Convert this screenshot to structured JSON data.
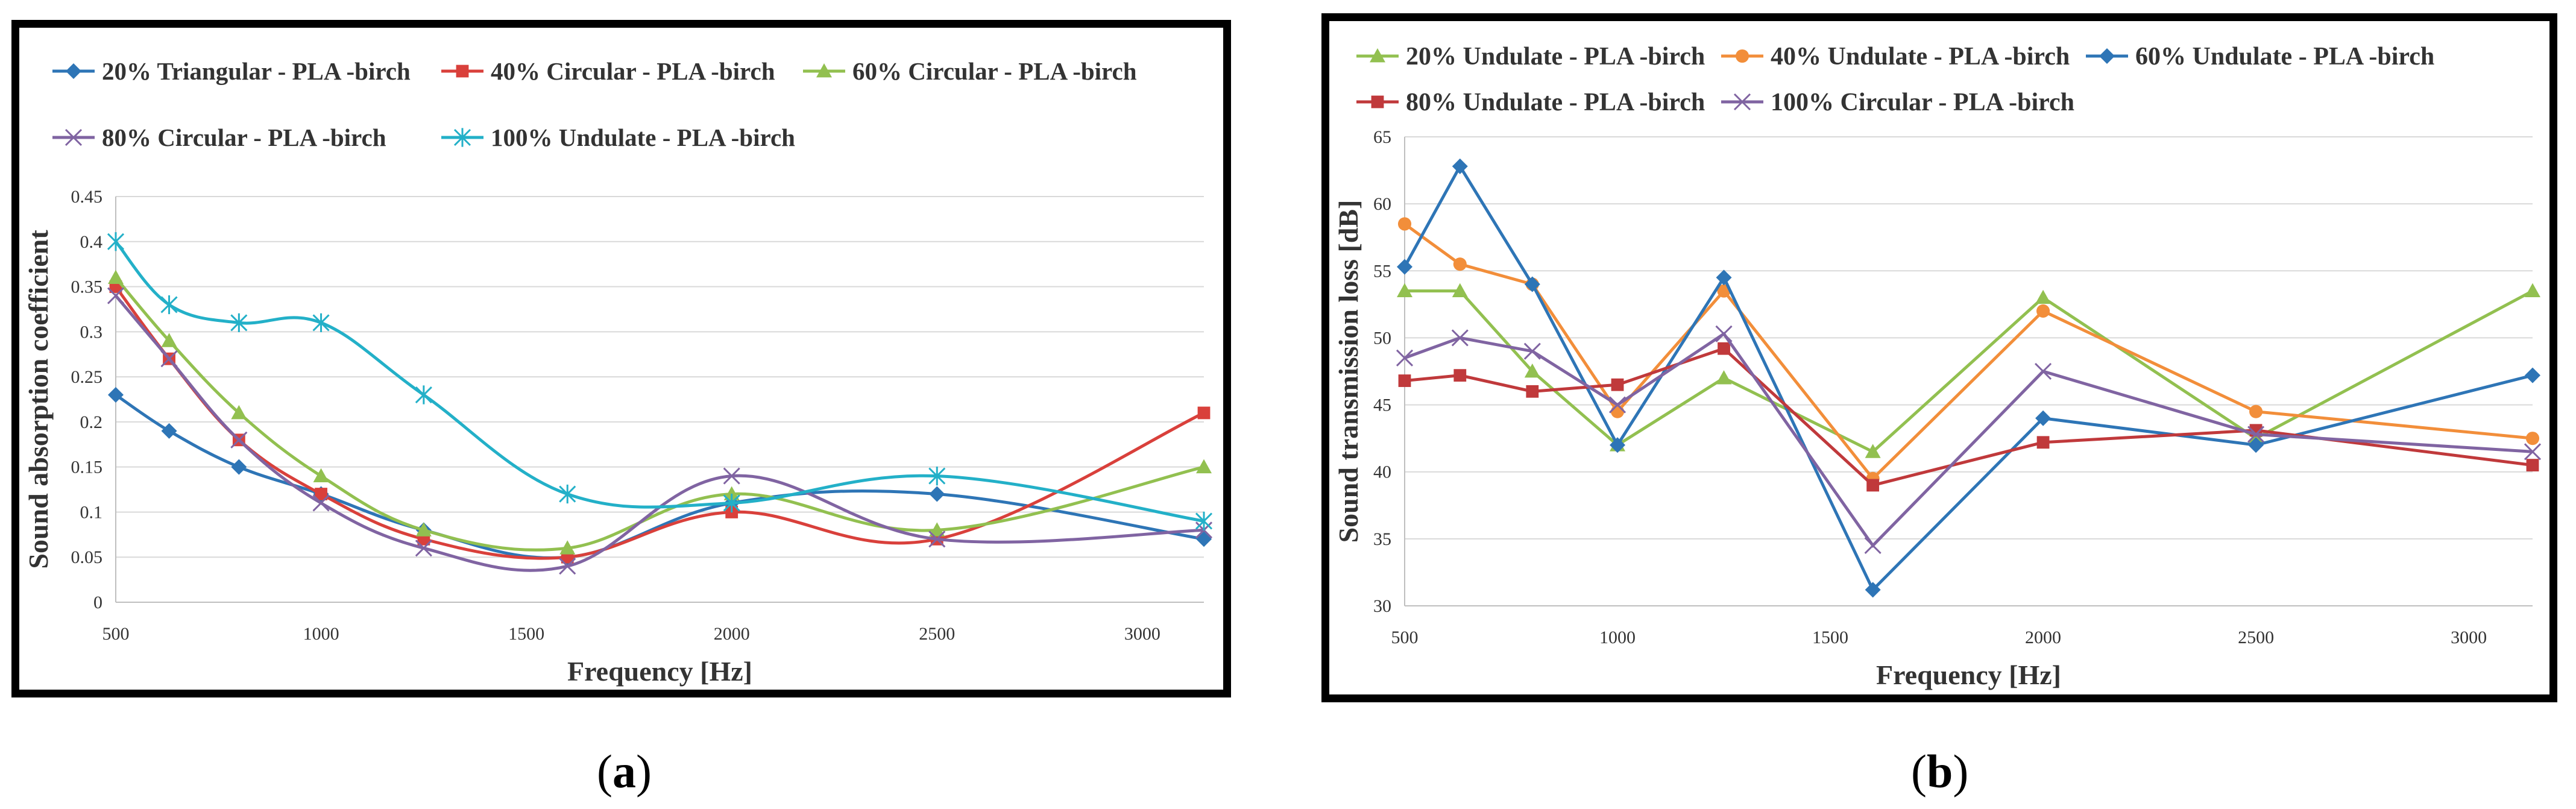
{
  "chart_data": [
    {
      "id": "a",
      "type": "line",
      "smooth": true,
      "xlabel": "Frequency [Hz]",
      "ylabel": "Sound absorption coefficient",
      "xlim": [
        500,
        3150
      ],
      "xticks": [
        500,
        1000,
        1500,
        2000,
        2500,
        3000
      ],
      "ylim": [
        0,
        0.45
      ],
      "yticks": [
        "0",
        "0.05",
        "0.1",
        "0.15",
        "0.2",
        "0.25",
        "0.3",
        "0.35",
        "0.4",
        "0.45"
      ],
      "grid": true,
      "legend_position": "top",
      "x": [
        500,
        630,
        800,
        1000,
        1250,
        1600,
        2000,
        2500,
        3150
      ],
      "series": [
        {
          "name": "20% Triangular - PLA -birch",
          "color": "#2E75B6",
          "marker": "diamond",
          "values": [
            0.23,
            0.19,
            0.15,
            0.12,
            0.08,
            0.05,
            0.11,
            0.12,
            0.07
          ]
        },
        {
          "name": "40% Circular - PLA -birch",
          "color": "#D9403B",
          "marker": "square",
          "values": [
            0.35,
            0.27,
            0.18,
            0.12,
            0.07,
            0.05,
            0.1,
            0.07,
            0.21
          ]
        },
        {
          "name": "60% Circular - PLA -birch",
          "color": "#92C050",
          "marker": "triangle",
          "values": [
            0.36,
            0.29,
            0.21,
            0.14,
            0.08,
            0.06,
            0.12,
            0.08,
            0.15
          ]
        },
        {
          "name": "80% Circular - PLA -birch",
          "color": "#8064A2",
          "marker": "x",
          "values": [
            0.34,
            0.27,
            0.18,
            0.11,
            0.06,
            0.04,
            0.14,
            0.07,
            0.08
          ]
        },
        {
          "name": "100% Undulate - PLA -birch",
          "color": "#23B0C8",
          "marker": "star",
          "values": [
            0.4,
            0.33,
            0.31,
            0.31,
            0.23,
            0.12,
            0.11,
            0.14,
            0.09
          ]
        }
      ]
    },
    {
      "id": "b",
      "type": "line",
      "smooth": false,
      "xlabel": "Frequency [Hz]",
      "ylabel": "Sound transmission loss [dB]",
      "xlim": [
        500,
        3150
      ],
      "xticks": [
        500,
        1000,
        1500,
        2000,
        2500,
        3000
      ],
      "ylim": [
        30,
        65
      ],
      "yticks": [
        "30",
        "35",
        "40",
        "45",
        "50",
        "55",
        "60",
        "65"
      ],
      "grid": true,
      "legend_position": "top",
      "x": [
        500,
        630,
        800,
        1000,
        1250,
        1600,
        2000,
        2500,
        3150
      ],
      "series": [
        {
          "name": "20% Undulate - PLA -birch",
          "color": "#92C050",
          "marker": "triangle",
          "values": [
            53.5,
            53.5,
            47.5,
            42,
            47,
            41.5,
            53,
            42.5,
            53.5
          ]
        },
        {
          "name": "40% Undulate - PLA -birch",
          "color": "#F28E3A",
          "marker": "circle",
          "values": [
            58.5,
            55.5,
            54,
            44.5,
            53.5,
            39.5,
            52,
            44.5,
            42.5
          ]
        },
        {
          "name": "60% Undulate - PLA -birch",
          "color": "#2E75B6",
          "marker": "diamond",
          "values": [
            55.3,
            62.8,
            54,
            42,
            54.5,
            31.2,
            44,
            42,
            47.2
          ]
        },
        {
          "name": "80% Undulate - PLA -birch",
          "color": "#C0393B",
          "marker": "square",
          "values": [
            46.8,
            47.2,
            46,
            46.5,
            49.2,
            39,
            42.2,
            43.1,
            40.5
          ]
        },
        {
          "name": "100% Circular - PLA -birch",
          "color": "#8064A2",
          "marker": "x",
          "values": [
            48.5,
            50,
            49,
            45,
            50.3,
            34.5,
            47.5,
            42.8,
            41.5
          ]
        }
      ]
    }
  ],
  "captions": {
    "a": "a",
    "b": "b"
  }
}
